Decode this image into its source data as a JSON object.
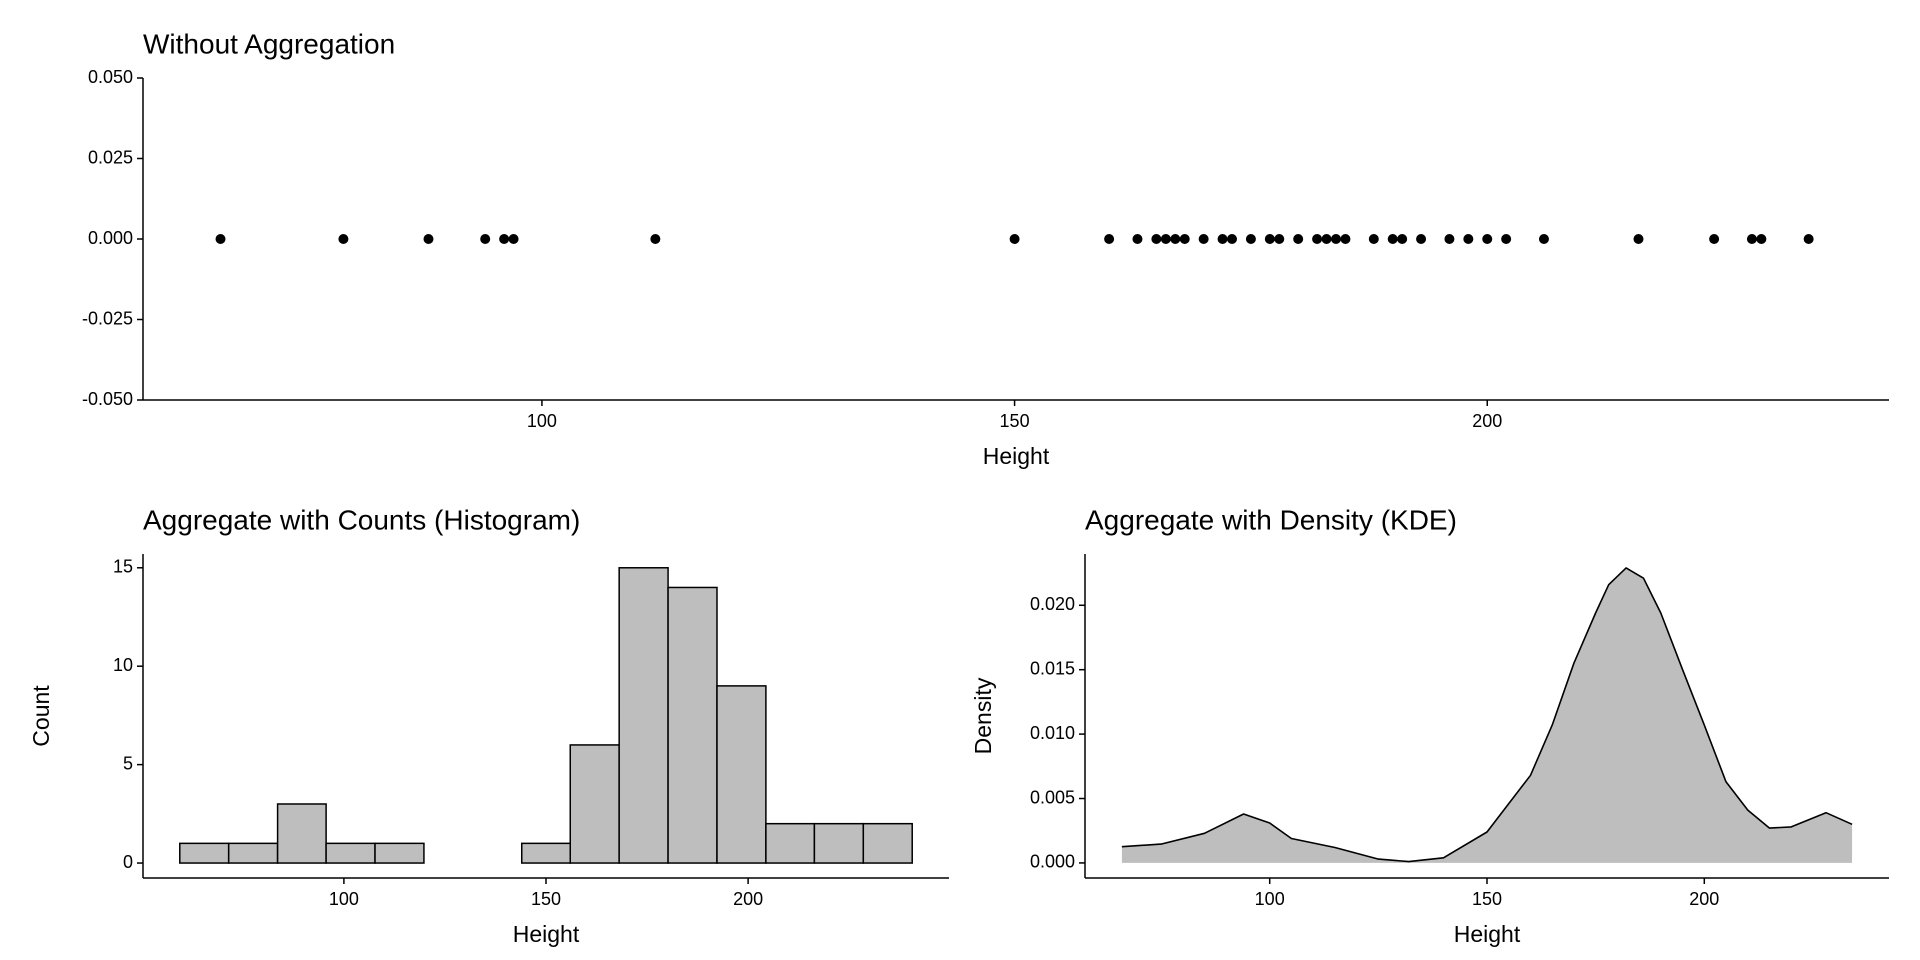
{
  "chart_data": [
    {
      "type": "scatter",
      "title": "Without Aggregation",
      "x_label": "Height",
      "x": [
        66,
        79,
        88,
        94,
        96,
        97,
        112,
        150,
        160,
        163,
        165,
        166,
        167,
        168,
        170,
        172,
        173,
        175,
        177,
        178,
        180,
        182,
        183,
        184,
        185,
        188,
        190,
        191,
        193,
        196,
        198,
        200,
        202,
        206,
        216,
        224,
        228,
        229,
        234
      ],
      "values": [
        0,
        0,
        0,
        0,
        0,
        0,
        0,
        0,
        0,
        0,
        0,
        0,
        0,
        0,
        0,
        0,
        0,
        0,
        0,
        0,
        0,
        0,
        0,
        0,
        0,
        0,
        0,
        0,
        0,
        0,
        0,
        0,
        0,
        0,
        0,
        0,
        0,
        0,
        0
      ],
      "color": "#000000",
      "xlim": [
        57.8,
        242.5
      ],
      "xticks": [
        100,
        150,
        200
      ],
      "ylim": [
        -0.05,
        0.05
      ],
      "yticks": [
        {
          "value": -0.05,
          "label": "-0.050"
        },
        {
          "value": -0.025,
          "label": "-0.025"
        },
        {
          "value": 0,
          "label": "0.000"
        },
        {
          "value": 0.025,
          "label": "0.025"
        },
        {
          "value": 0.05,
          "label": "0.050"
        }
      ]
    },
    {
      "type": "histogram",
      "title": "Aggregate with Counts (Histogram)",
      "x_label": "Height",
      "y_label": "Count",
      "bins": [
        59.4,
        71.5,
        83.6,
        95.6,
        107.7,
        119.8,
        131.9,
        144.0,
        156.0,
        168.1,
        180.2,
        192.3,
        204.4,
        216.4,
        228.5,
        240.6
      ],
      "values": [
        1,
        1,
        3,
        1,
        1,
        0,
        0,
        1,
        6,
        15,
        14,
        9,
        2,
        2,
        2
      ],
      "color": "#bebebe",
      "edgecolor": "#000000",
      "xlim": [
        50.3,
        249.7
      ],
      "xticks": [
        100,
        150,
        200
      ],
      "ylim": [
        -0.76,
        15.7
      ],
      "yticks": [
        0,
        5,
        10,
        15
      ]
    },
    {
      "type": "density",
      "title": "Aggregate with Density (KDE)",
      "x_label": "Height",
      "y_label": "Density",
      "x": [
        66,
        75,
        85,
        94,
        100,
        105,
        115,
        125,
        132,
        140,
        150,
        160,
        165,
        170,
        175,
        178,
        182,
        186,
        190,
        195,
        200,
        205,
        210,
        215,
        220,
        228,
        234
      ],
      "values": [
        0.00126,
        0.00146,
        0.0023,
        0.0038,
        0.0031,
        0.0019,
        0.0012,
        0.0003,
        0.0001,
        0.0004,
        0.0024,
        0.0068,
        0.0107,
        0.0155,
        0.0194,
        0.0216,
        0.0229,
        0.0221,
        0.0194,
        0.015,
        0.0107,
        0.0063,
        0.0041,
        0.0027,
        0.0028,
        0.0039,
        0.003
      ],
      "color": "#bebebe",
      "edgecolor": "#000000",
      "xlim": [
        57.5,
        242.5
      ],
      "xticks": [
        100,
        150,
        200
      ],
      "ylim": [
        -0.00117,
        0.02398
      ],
      "yticks": [
        {
          "value": 0,
          "label": "0.000"
        },
        {
          "value": 0.005,
          "label": "0.005"
        },
        {
          "value": 0.01,
          "label": "0.010"
        },
        {
          "value": 0.015,
          "label": "0.015"
        },
        {
          "value": 0.02,
          "label": "0.020"
        }
      ]
    }
  ]
}
